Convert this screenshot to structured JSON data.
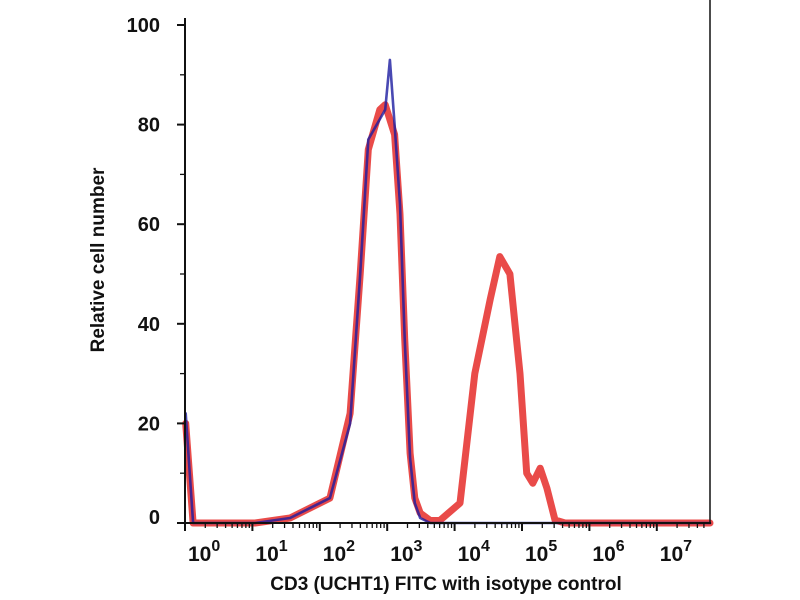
{
  "chart_data": {
    "type": "line",
    "title": "",
    "xlabel": "CD3 (UCHT1) FITC with isotype control",
    "ylabel": "Relative cell number",
    "x_scale": "log10",
    "xlim_log10": [
      0,
      7.79
    ],
    "ylim": [
      0,
      100
    ],
    "grid": false,
    "x_ticks": [
      {
        "base": "10",
        "exp": "0",
        "log": 0
      },
      {
        "base": "10",
        "exp": "1",
        "log": 1
      },
      {
        "base": "10",
        "exp": "2",
        "log": 2
      },
      {
        "base": "10",
        "exp": "3",
        "log": 3
      },
      {
        "base": "10",
        "exp": "4",
        "log": 4
      },
      {
        "base": "10",
        "exp": "5",
        "log": 5
      },
      {
        "base": "10",
        "exp": "6",
        "log": 6
      },
      {
        "base": "10",
        "exp": "7",
        "log": 7
      }
    ],
    "y_ticks": [
      "0",
      "20",
      "40",
      "60",
      "80",
      "100"
    ],
    "series": [
      {
        "name": "CD3 (UCHT1) FITC",
        "color": "#e8413f",
        "points_log10_x": [
          [
            0.01,
            20
          ],
          [
            0.12,
            0
          ],
          [
            1.04,
            0
          ],
          [
            1.56,
            1
          ],
          [
            2.15,
            5
          ],
          [
            2.45,
            22
          ],
          [
            2.6,
            50
          ],
          [
            2.72,
            75
          ],
          [
            2.89,
            83
          ],
          [
            2.97,
            84
          ],
          [
            3.11,
            78
          ],
          [
            3.19,
            62
          ],
          [
            3.26,
            37
          ],
          [
            3.34,
            14
          ],
          [
            3.41,
            5
          ],
          [
            3.49,
            2
          ],
          [
            3.64,
            0.5
          ],
          [
            3.78,
            0.5
          ],
          [
            4.08,
            4
          ],
          [
            4.3,
            30
          ],
          [
            4.53,
            45
          ],
          [
            4.67,
            53.5
          ],
          [
            4.82,
            50
          ],
          [
            4.97,
            30
          ],
          [
            5.07,
            10
          ],
          [
            5.16,
            8
          ],
          [
            5.27,
            11
          ],
          [
            5.37,
            7
          ],
          [
            5.49,
            0.6
          ],
          [
            5.64,
            0
          ],
          [
            7.79,
            0
          ]
        ]
      },
      {
        "name": "Isotype control",
        "color": "#1c1ca0",
        "points_log10_x": [
          [
            0.01,
            22
          ],
          [
            0.12,
            0
          ],
          [
            1.04,
            0
          ],
          [
            1.56,
            1
          ],
          [
            2.15,
            5
          ],
          [
            2.45,
            20
          ],
          [
            2.6,
            50
          ],
          [
            2.72,
            77
          ],
          [
            2.97,
            83
          ],
          [
            3.04,
            93
          ],
          [
            3.11,
            80
          ],
          [
            3.19,
            64
          ],
          [
            3.26,
            37
          ],
          [
            3.34,
            13
          ],
          [
            3.41,
            4
          ],
          [
            3.49,
            1
          ],
          [
            3.64,
            0
          ],
          [
            7.79,
            0
          ]
        ]
      }
    ]
  }
}
